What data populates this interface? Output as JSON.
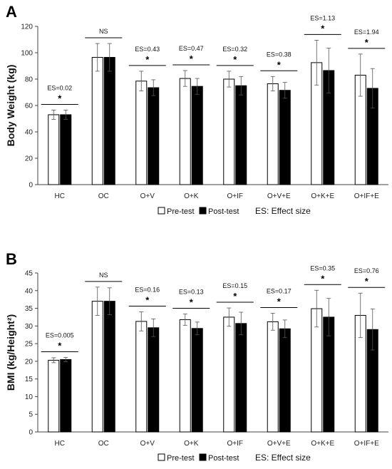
{
  "chart_data": [
    {
      "type": "bar",
      "panel_label": "A",
      "ylabel": "Body Weight (kg)",
      "ylim": [
        0,
        120
      ],
      "yticks": [
        0,
        20,
        40,
        60,
        80,
        100,
        120
      ],
      "categories": [
        "HC",
        "OC",
        "O+V",
        "O+K",
        "O+IF",
        "O+V+E",
        "O+K+E",
        "O+IF+E"
      ],
      "series": [
        {
          "name": "Pre-test",
          "color": "#ffffff",
          "values": [
            53,
            96.5,
            78.5,
            80.5,
            80,
            76.5,
            92.5,
            83
          ],
          "errors": [
            3.5,
            10.5,
            7.5,
            6,
            6,
            5.5,
            17,
            16
          ]
        },
        {
          "name": "Post-test",
          "color": "#000000",
          "values": [
            53,
            96.5,
            73.5,
            74.5,
            75,
            71.5,
            86.5,
            73
          ],
          "errors": [
            3.5,
            10.5,
            6,
            6,
            7,
            6,
            17,
            15
          ]
        }
      ],
      "annotations": [
        "ES=0.02",
        "NS",
        "ES=0.43",
        "ES=0.47",
        "ES=0.32",
        "ES=0.38",
        "ES=1.13",
        "ES=1.94"
      ],
      "significance": [
        "*",
        "",
        "*",
        "*",
        "*",
        "*",
        "*",
        "*"
      ],
      "legend": [
        "Pre-test",
        "Post-test"
      ],
      "legend_note": "ES: Effect size",
      "grid": false
    },
    {
      "type": "bar",
      "panel_label": "B",
      "ylabel": "BMI (kg/Height²)",
      "ylim": [
        0,
        45
      ],
      "yticks": [
        0,
        5,
        10,
        15,
        20,
        25,
        30,
        35,
        40,
        45
      ],
      "categories": [
        "HC",
        "OC",
        "O+V",
        "O+K",
        "O+IF",
        "O+V+E",
        "O+K+E",
        "O+IF+E"
      ],
      "series": [
        {
          "name": "Pre-test",
          "color": "#ffffff",
          "values": [
            20.3,
            37,
            31.3,
            31.8,
            32.5,
            31.2,
            34.9,
            33
          ],
          "errors": [
            0.7,
            4,
            2.7,
            1.6,
            2.6,
            2.4,
            5.2,
            6.3
          ]
        },
        {
          "name": "Post-test",
          "color": "#000000",
          "values": [
            20.5,
            37,
            29.5,
            29.3,
            30.7,
            29.2,
            32.5,
            29
          ],
          "errors": [
            0.6,
            3.8,
            2.5,
            1.8,
            3.2,
            2.5,
            5.3,
            5.8
          ]
        }
      ],
      "annotations": [
        "ES=0.005",
        "NS",
        "ES=0.16",
        "ES=0.13",
        "ES=0.15",
        "ES=0.17",
        "ES=0.35",
        "ES=0.76"
      ],
      "significance": [
        "*",
        "",
        "*",
        "*",
        "*",
        "*",
        "*",
        "*"
      ],
      "legend": [
        "Pre-test",
        "Post-test"
      ],
      "legend_note": "ES: Effect size",
      "grid": false
    }
  ]
}
